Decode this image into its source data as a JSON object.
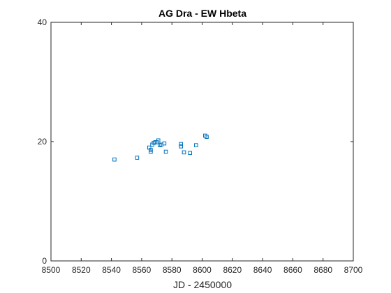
{
  "chart_data": {
    "type": "scatter",
    "title": "AG Dra - EW Hbeta",
    "xlabel": "JD - 2450000",
    "ylabel": "",
    "xlim": [
      8500,
      8700
    ],
    "ylim": [
      0,
      40
    ],
    "xticks": [
      8500,
      8520,
      8540,
      8560,
      8580,
      8600,
      8620,
      8640,
      8660,
      8680,
      8700
    ],
    "yticks": [
      0,
      20,
      40
    ],
    "grid": false,
    "marker": "square",
    "colors": {
      "marker": "#0072BD",
      "axes": "#262626",
      "background": "#ffffff"
    },
    "series": [
      {
        "points": [
          [
            8542,
            17.0
          ],
          [
            8557,
            17.3
          ],
          [
            8565,
            19.0
          ],
          [
            8566,
            18.6
          ],
          [
            8566,
            18.3
          ],
          [
            8567,
            19.5
          ],
          [
            8568,
            19.8
          ],
          [
            8569,
            19.9
          ],
          [
            8570,
            19.9
          ],
          [
            8571,
            20.2
          ],
          [
            8572,
            19.4
          ],
          [
            8573,
            19.5
          ],
          [
            8575,
            19.7
          ],
          [
            8576,
            18.3
          ],
          [
            8586,
            19.6
          ],
          [
            8586,
            19.2
          ],
          [
            8588,
            18.2
          ],
          [
            8592,
            18.1
          ],
          [
            8596,
            19.4
          ],
          [
            8602,
            21.0
          ],
          [
            8603,
            20.8
          ]
        ]
      }
    ]
  }
}
